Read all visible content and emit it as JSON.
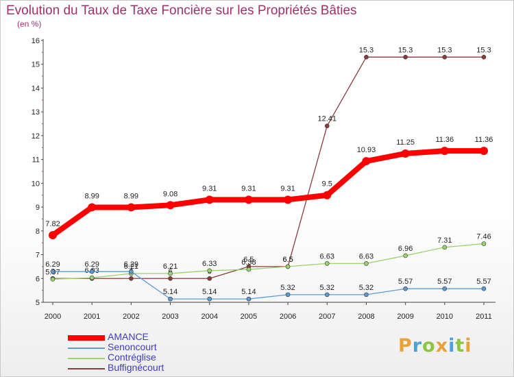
{
  "title": "Evolution du Taux de Taxe Foncière sur les Propriétés Bâties",
  "subtitle": "(en %)",
  "logo": {
    "letters": [
      "P",
      "r",
      "o",
      "x",
      "i",
      "t",
      "i"
    ],
    "colors": [
      "#e8a23a",
      "#4aa0d8",
      "#8cc63f",
      "#e8a23a",
      "#4aa0d8",
      "#8cc63f",
      "#e8a23a"
    ]
  },
  "chart_data": {
    "type": "line",
    "title": "Evolution du Taux de Taxe Foncière sur les Propriétés Bâties",
    "ylabel": "(en %)",
    "xlabel": "",
    "x": [
      "2000",
      "2001",
      "2002",
      "2003",
      "2004",
      "2005",
      "2006",
      "2007",
      "2008",
      "2009",
      "2010",
      "2011"
    ],
    "ylim": [
      5,
      16
    ],
    "yticks": [
      5,
      6,
      7,
      8,
      9,
      10,
      11,
      12,
      13,
      14,
      15,
      16
    ],
    "grid": false,
    "legend": "bottom-left",
    "series": [
      {
        "name": "AMANCE",
        "color": "#ff0000",
        "width": 8,
        "values": [
          7.82,
          8.99,
          8.99,
          9.08,
          9.31,
          9.31,
          9.31,
          9.5,
          10.93,
          11.25,
          11.36,
          11.36
        ],
        "labels": [
          "7.82",
          "8.99",
          "8.99",
          "9.08",
          "9.31",
          "9.31",
          "9.31",
          "9.5",
          "10.93",
          "11.25",
          "11.36",
          "11.36"
        ]
      },
      {
        "name": "Senoncourt",
        "color": "#5b9bd5",
        "width": 1.3,
        "values": [
          6.29,
          6.29,
          6.29,
          5.14,
          5.14,
          5.14,
          5.32,
          5.32,
          5.32,
          5.57,
          5.57,
          5.57
        ],
        "labels": [
          "6.29",
          "6.29",
          "6.29",
          "5.14",
          "5.14",
          "5.14",
          "5.32",
          "5.32",
          "5.32",
          "5.57",
          "5.57",
          "5.57"
        ]
      },
      {
        "name": "Contréglise",
        "color": "#98d46a",
        "width": 1.3,
        "values": [
          5.97,
          6.03,
          6.21,
          6.21,
          6.33,
          6.38,
          6.5,
          6.63,
          6.63,
          6.96,
          7.31,
          7.46
        ],
        "labels": [
          "5.97",
          "6.03",
          "6.21",
          "6.21",
          "6.33",
          "6.38",
          "6.5",
          "6.63",
          "6.63",
          "6.96",
          "7.31",
          "7.46"
        ]
      },
      {
        "name": "Buffignécourt",
        "color": "#8b3a3a",
        "width": 1.3,
        "values": [
          6.0,
          6.0,
          6.0,
          6.0,
          6.0,
          6.5,
          6.5,
          12.41,
          15.3,
          15.3,
          15.3,
          15.3
        ],
        "labels": [
          "6",
          "6",
          "6",
          "6",
          "6",
          "6.5",
          "6.5",
          "12.41",
          "15.3",
          "15.3",
          "15.3",
          "15.3"
        ]
      }
    ]
  }
}
